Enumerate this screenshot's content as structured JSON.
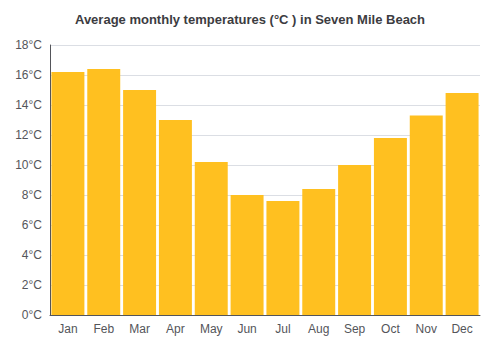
{
  "chart_data": {
    "type": "bar",
    "title": "Average monthly temperatures (°C ) in Seven Mile Beach",
    "categories": [
      "Jan",
      "Feb",
      "Mar",
      "Apr",
      "May",
      "Jun",
      "Jul",
      "Aug",
      "Sep",
      "Oct",
      "Nov",
      "Dec"
    ],
    "values": [
      16.2,
      16.4,
      15.0,
      13.0,
      10.2,
      8.0,
      7.6,
      8.4,
      10.0,
      11.8,
      13.3,
      14.8
    ],
    "color": "#FFC020",
    "ylim": [
      0,
      18
    ],
    "yticks": [
      {
        "value": 0,
        "label": "0°C"
      },
      {
        "value": 2,
        "label": "2°C"
      },
      {
        "value": 4,
        "label": "4°C"
      },
      {
        "value": 6,
        "label": "6°C"
      },
      {
        "value": 8,
        "label": "8°C"
      },
      {
        "value": 10,
        "label": "10°C"
      },
      {
        "value": 12,
        "label": "12°C"
      },
      {
        "value": 14,
        "label": "14°C"
      },
      {
        "value": 16,
        "label": "16°C"
      },
      {
        "value": 18,
        "label": "18°C"
      }
    ],
    "grid": true
  }
}
